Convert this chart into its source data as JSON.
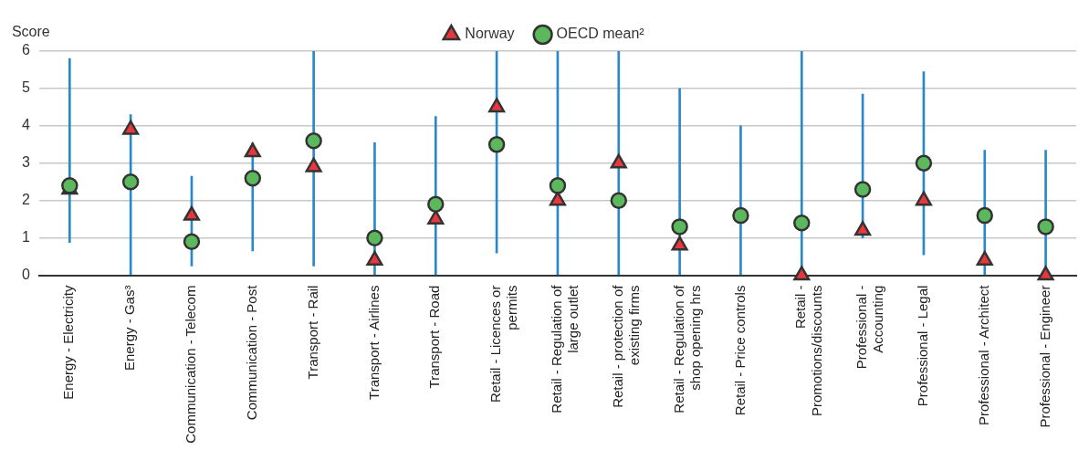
{
  "chart_data": {
    "type": "scatter",
    "ylabel": "Score",
    "categories": [
      "Energy - Electricity",
      "Energy - Gas³",
      "Communication - Telecom",
      "Communication - Post",
      "Transport - Rail",
      "Transport - Airlines",
      "Transport - Road",
      "Retail - Licences or permits",
      "Retail - Regulation of large outlet",
      "Retail - protection of existing firms",
      "Retail - Regulation of shop opening hrs",
      "Retail - Price controls",
      "Retail - Promotions/discounts",
      "Professional - Accounting",
      "Professional - Legal",
      "Professional - Architect",
      "Professional - Engineer"
    ],
    "series": [
      {
        "type": "bar",
        "color": "#2a88c8",
        "base": [
          0.88,
          0,
          0.25,
          0.65,
          0.25,
          0,
          0,
          0.6,
          0,
          0,
          0,
          0,
          0,
          1.0,
          0.55,
          0,
          0
        ],
        "values": [
          4.92,
          4.3,
          2.4,
          2.9,
          5.75,
          3.55,
          4.25,
          5.4,
          6,
          6,
          5,
          4,
          6,
          3.85,
          4.9,
          3.35,
          3.35
        ]
      },
      {
        "name": "Norway",
        "color": "#e8383d",
        "marker": "triangle",
        "values": [
          2.3,
          3.9,
          1.6,
          3.3,
          2.9,
          0.4,
          1.5,
          4.5,
          2.0,
          3.0,
          0.8,
          null,
          0,
          1.2,
          2.0,
          0.4,
          0
        ]
      },
      {
        "name": "OECD mean²",
        "color": "#5cb85c",
        "marker": "circle",
        "values": [
          2.4,
          2.5,
          0.9,
          2.6,
          3.6,
          1.0,
          1.9,
          3.5,
          2.4,
          2.0,
          1.3,
          1.6,
          1.4,
          2.3,
          3.0,
          1.6,
          1.3
        ]
      }
    ],
    "ylim": [
      0,
      6
    ],
    "yticks": [
      0,
      1,
      2,
      3,
      4,
      5,
      6
    ],
    "grid": "y",
    "legend": "top"
  }
}
